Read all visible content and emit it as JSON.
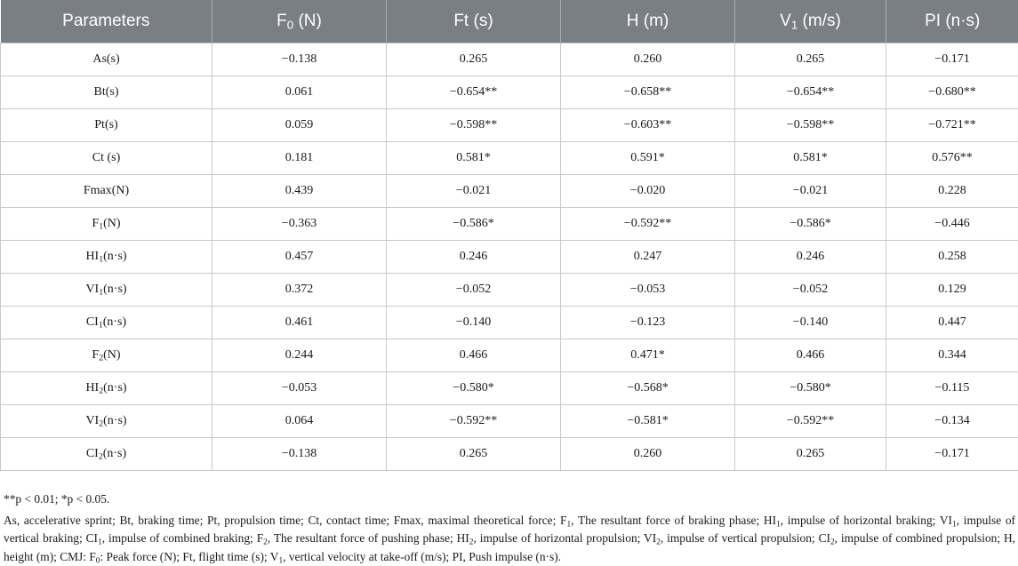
{
  "table": {
    "headers": [
      {
        "main": "Parameters",
        "sub": "",
        "rest": ""
      },
      {
        "main": "F",
        "sub": "0",
        "rest": " (N)"
      },
      {
        "main": "Ft (s)",
        "sub": "",
        "rest": ""
      },
      {
        "main": "H (m)",
        "sub": "",
        "rest": ""
      },
      {
        "main": "V",
        "sub": "1",
        "rest": " (m/s)"
      },
      {
        "main": "PI (n·s)",
        "sub": "",
        "rest": ""
      }
    ],
    "rows": [
      {
        "param": {
          "main": "As(s)",
          "sub": "",
          "rest": ""
        },
        "values": [
          "−0.138",
          "0.265",
          "0.260",
          "0.265",
          "−0.171"
        ]
      },
      {
        "param": {
          "main": "Bt(s)",
          "sub": "",
          "rest": ""
        },
        "values": [
          "0.061",
          "−0.654**",
          "−0.658**",
          "−0.654**",
          "−0.680**"
        ]
      },
      {
        "param": {
          "main": "Pt(s)",
          "sub": "",
          "rest": ""
        },
        "values": [
          "0.059",
          "−0.598**",
          "−0.603**",
          "−0.598**",
          "−0.721**"
        ]
      },
      {
        "param": {
          "main": "Ct (s)",
          "sub": "",
          "rest": ""
        },
        "values": [
          "0.181",
          "0.581*",
          "0.591*",
          "0.581*",
          "0.576**"
        ]
      },
      {
        "param": {
          "main": "Fmax(N)",
          "sub": "",
          "rest": ""
        },
        "values": [
          "0.439",
          "−0.021",
          "−0.020",
          "−0.021",
          "0.228"
        ]
      },
      {
        "param": {
          "main": "F",
          "sub": "1",
          "rest": "(N)"
        },
        "values": [
          "−0.363",
          "−0.586*",
          "−0.592**",
          "−0.586*",
          "−0.446"
        ]
      },
      {
        "param": {
          "main": "HI",
          "sub": "1",
          "rest": "(n·s)"
        },
        "values": [
          "0.457",
          "0.246",
          "0.247",
          "0.246",
          "0.258"
        ]
      },
      {
        "param": {
          "main": "VI",
          "sub": "1",
          "rest": "(n·s)"
        },
        "values": [
          "0.372",
          "−0.052",
          "−0.053",
          "−0.052",
          "0.129"
        ]
      },
      {
        "param": {
          "main": "CI",
          "sub": "1",
          "rest": "(n·s)"
        },
        "values": [
          "0.461",
          "−0.140",
          "−0.123",
          "−0.140",
          "0.447"
        ]
      },
      {
        "param": {
          "main": "F",
          "sub": "2",
          "rest": "(N)"
        },
        "values": [
          "0.244",
          "0.466",
          "0.471*",
          "0.466",
          "0.344"
        ]
      },
      {
        "param": {
          "main": "HI",
          "sub": "2",
          "rest": "(n·s)"
        },
        "values": [
          "−0.053",
          "−0.580*",
          "−0.568*",
          "−0.580*",
          "−0.115"
        ]
      },
      {
        "param": {
          "main": "VI",
          "sub": "2",
          "rest": "(n·s)"
        },
        "values": [
          "0.064",
          "−0.592**",
          "−0.581*",
          "−0.592**",
          "−0.134"
        ]
      },
      {
        "param": {
          "main": "CI",
          "sub": "2",
          "rest": "(n·s)"
        },
        "values": [
          "−0.138",
          "0.265",
          "0.260",
          "0.265",
          "−0.171"
        ]
      }
    ]
  },
  "notes": {
    "significance": "**p < 0.01; *p < 0.05.",
    "abbreviations": [
      {
        "t": "As, accelerative sprint; Bt, braking time; Pt, propulsion time; Ct, contact time; Fmax, maximal theoretical force; F"
      },
      {
        "s": "1"
      },
      {
        "t": ", The resultant force of braking phase; HI"
      },
      {
        "s": "1"
      },
      {
        "t": ", impulse of horizontal braking; VI"
      },
      {
        "s": "1"
      },
      {
        "t": ", impulse of vertical braking; CI"
      },
      {
        "s": "1"
      },
      {
        "t": ", impulse of combined braking; F"
      },
      {
        "s": "2"
      },
      {
        "t": ", The resultant force of pushing phase; HI"
      },
      {
        "s": "2"
      },
      {
        "t": ", impulse of horizontal propulsion; VI"
      },
      {
        "s": "2"
      },
      {
        "t": ", impulse of vertical propulsion; CI"
      },
      {
        "s": "2"
      },
      {
        "t": ", impulse of combined propulsion; H, height (m); CMJ: F"
      },
      {
        "s": "0"
      },
      {
        "t": ": Peak force (N); Ft, flight time (s); V"
      },
      {
        "s": "1"
      },
      {
        "t": ", vertical velocity at take-off (m/s); PI, Push impulse (n·s)."
      }
    ]
  }
}
